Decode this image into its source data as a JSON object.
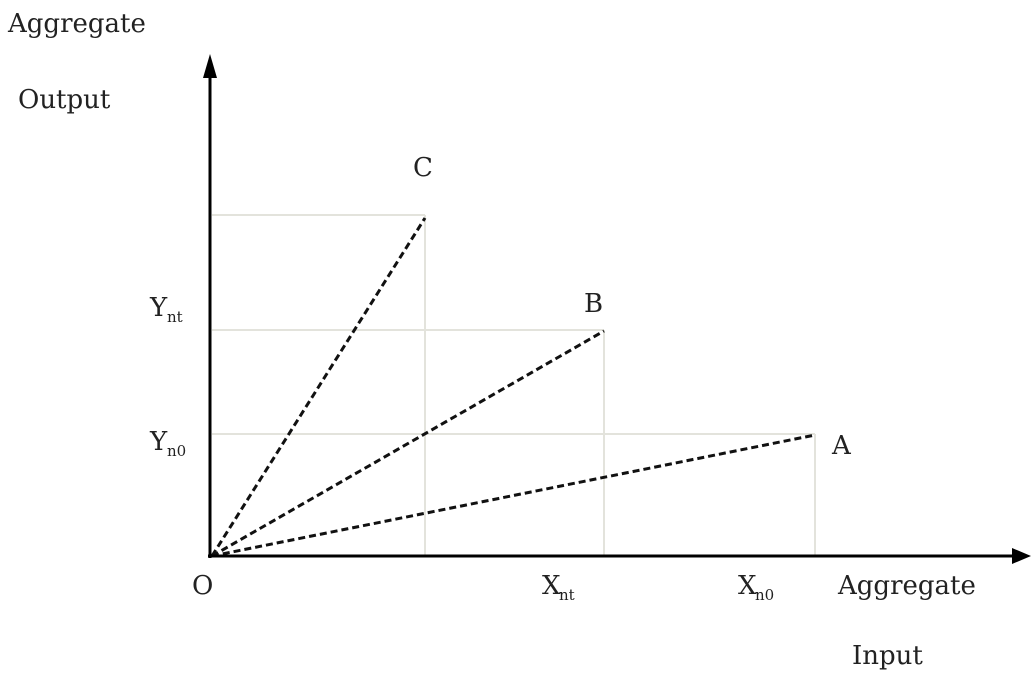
{
  "y_axis": {
    "label_line1": "Aggregate",
    "label_line2": "Output"
  },
  "x_axis": {
    "label_line1": "Aggregate",
    "label_line2": "Input"
  },
  "origin_label": "O",
  "points": [
    {
      "label": "A"
    },
    {
      "label": "B"
    },
    {
      "label": "C"
    }
  ],
  "y_ticks": [
    {
      "main": "Y",
      "sub": "nt"
    },
    {
      "main": "Y",
      "sub": "n0"
    }
  ],
  "x_ticks": [
    {
      "main": "X",
      "sub": "nt"
    },
    {
      "main": "X",
      "sub": "n0"
    }
  ],
  "colors": {
    "axis": "#000000",
    "guide": "#e3e3dc",
    "ray": "#111111",
    "text": "#222222"
  }
}
